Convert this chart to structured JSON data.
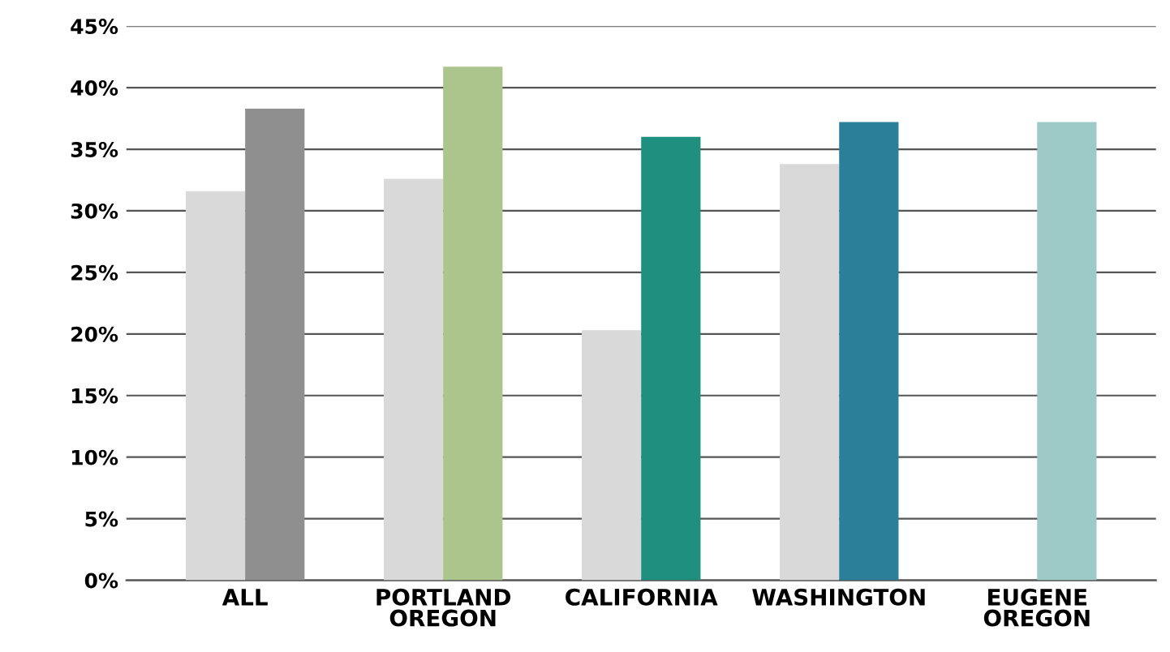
{
  "chart_data": {
    "type": "bar",
    "categories": [
      "ALL",
      "PORTLAND\nOREGON",
      "CALIFORNIA",
      "WASHINGTON",
      "EUGENE\nOREGON"
    ],
    "series": [
      {
        "color": "#d9d9d9",
        "values": [
          31.6,
          32.6,
          20.3,
          33.8,
          null
        ]
      },
      {
        "colors": [
          "#8f8f8f",
          "#abc58c",
          "#1f8f80",
          "#2b7f99",
          "#9dcac6"
        ],
        "values": [
          38.3,
          41.7,
          36.0,
          37.2,
          37.2
        ]
      }
    ],
    "ylim": [
      0,
      45
    ],
    "yticks": [
      {
        "value": 0,
        "label": "0%"
      },
      {
        "value": 5,
        "label": "5%"
      },
      {
        "value": 10,
        "label": "10%"
      },
      {
        "value": 15,
        "label": "15%"
      },
      {
        "value": 20,
        "label": "20%"
      },
      {
        "value": 25,
        "label": "25%"
      },
      {
        "value": 30,
        "label": "30%"
      },
      {
        "value": 35,
        "label": "35%"
      },
      {
        "value": 40,
        "label": "40%"
      },
      {
        "value": 45,
        "label": "45%"
      }
    ],
    "grid": "y"
  }
}
